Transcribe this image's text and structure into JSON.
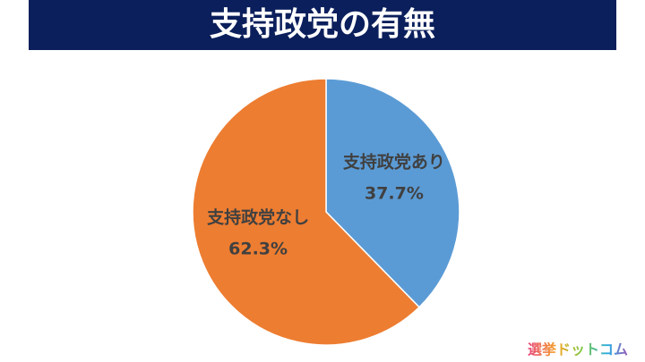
{
  "chart_data": {
    "type": "pie",
    "title": "支持政党の有無",
    "categories": [
      "支持政党あり",
      "支持政党なし"
    ],
    "values": [
      37.7,
      62.3
    ],
    "value_labels": [
      "37.7%",
      "62.3%"
    ],
    "colors": [
      "#5b9bd5",
      "#ed7d31"
    ]
  },
  "logo": "選挙ドットコム"
}
